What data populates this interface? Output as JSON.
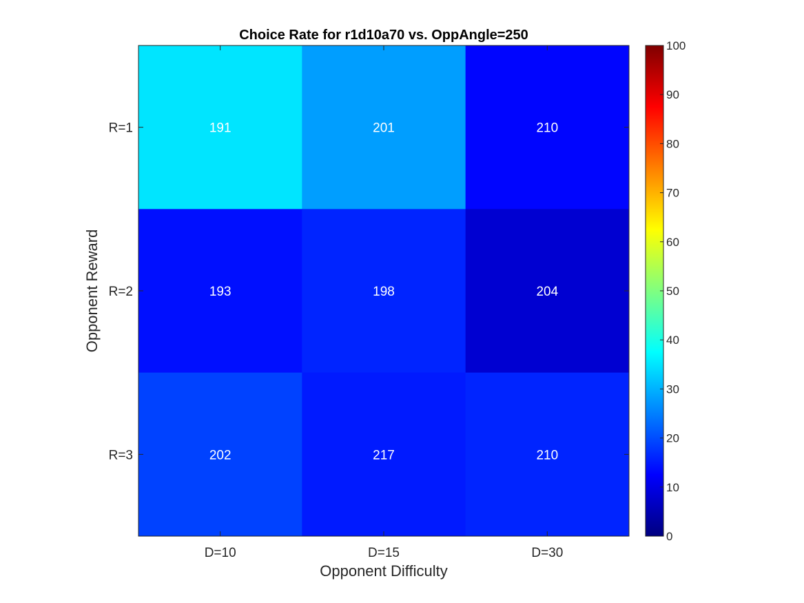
{
  "chart_data": {
    "type": "heatmap",
    "title": "Choice Rate for r1d10a70 vs. OppAngle=250",
    "xlabel": "Opponent Difficulty",
    "ylabel": "Opponent Reward",
    "x_categories": [
      "D=10",
      "D=15",
      "D=30"
    ],
    "y_categories": [
      "R=1",
      "R=2",
      "R=3"
    ],
    "cell_labels": [
      [
        "191",
        "201",
        "210"
      ],
      [
        "193",
        "198",
        "204"
      ],
      [
        "202",
        "217",
        "210"
      ]
    ],
    "color_values": [
      [
        35,
        28,
        13
      ],
      [
        14,
        16,
        8
      ],
      [
        19,
        15,
        16
      ]
    ],
    "colormap": "jet",
    "clim": [
      0,
      100
    ],
    "colorbar_ticks": [
      0,
      10,
      20,
      30,
      40,
      50,
      60,
      70,
      80,
      90,
      100
    ],
    "colorbar_tick_labels": [
      "0",
      "10",
      "20",
      "30",
      "40",
      "50",
      "60",
      "70",
      "80",
      "90",
      "100"
    ]
  }
}
